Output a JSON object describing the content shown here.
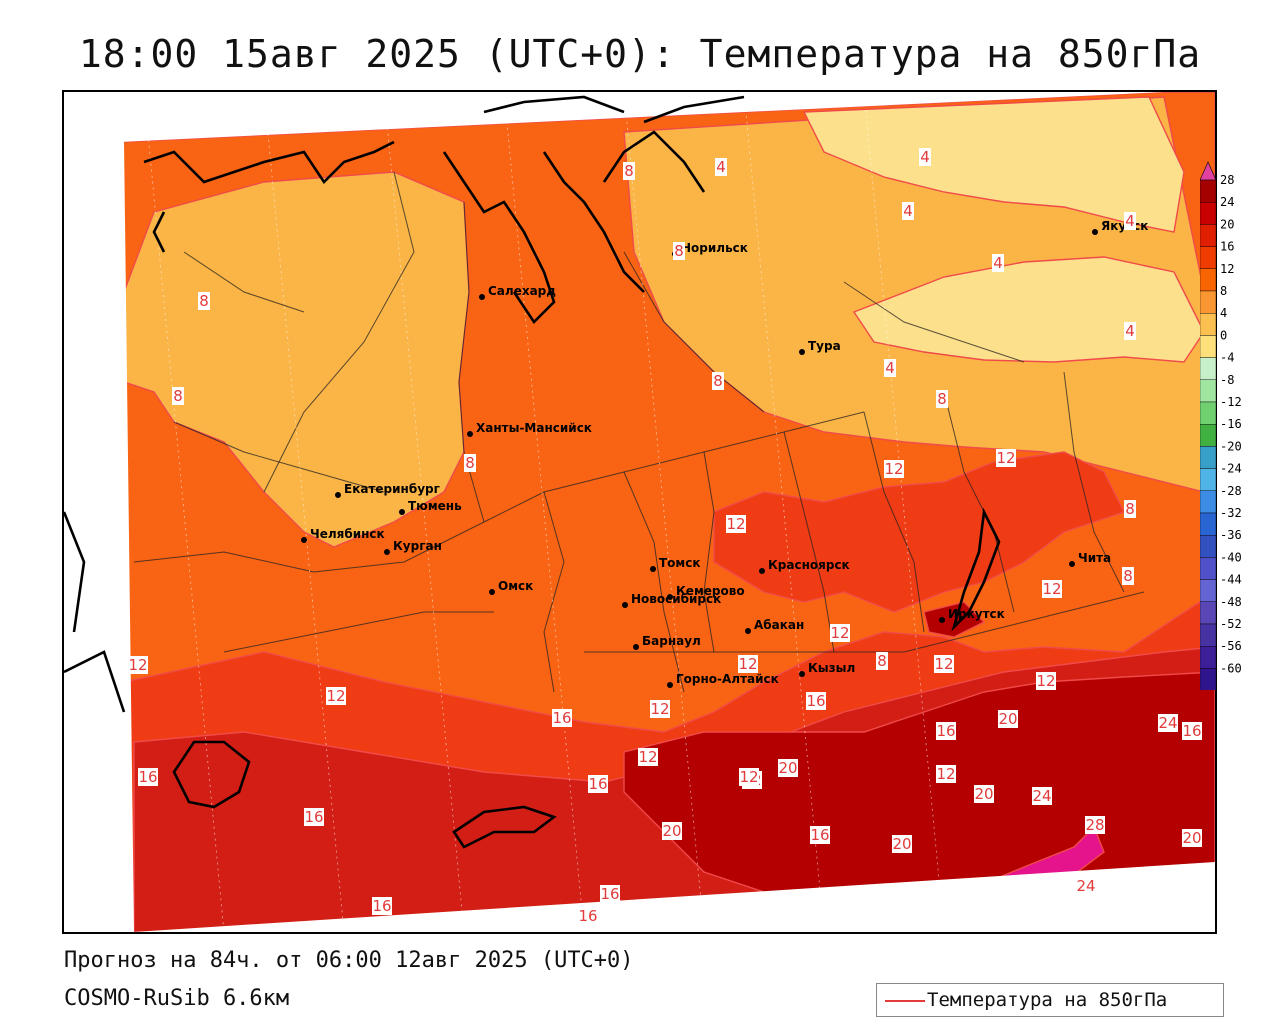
{
  "header": {
    "title": "18:00 15авг 2025 (UTC+0): Температура на 850гПа"
  },
  "footer": {
    "forecast_line": "Прогноз на 84ч. от 06:00 12авг 2025 (UTC+0)",
    "model_line": "COSMO-RuSib 6.6км"
  },
  "legend": {
    "label": "Температура на 850гПа",
    "line_color": "#e23b3b"
  },
  "colorbar": {
    "ticks": [
      "28",
      "24",
      "20",
      "16",
      "12",
      "8",
      "4",
      "0",
      "-4",
      "-8",
      "-12",
      "-16",
      "-20",
      "-24",
      "-28",
      "-32",
      "-36",
      "-40",
      "-44",
      "-48",
      "-52",
      "-56",
      "-60"
    ],
    "colors": [
      "#a40000",
      "#c80000",
      "#e01e00",
      "#f03c00",
      "#f86400",
      "#fa9632",
      "#fbc050",
      "#fde07a",
      "#c8f0c8",
      "#a0e6a0",
      "#70d070",
      "#40b040",
      "#38a0c8",
      "#50b4e8",
      "#3c8ce6",
      "#2864d2",
      "#3250be",
      "#5050c8",
      "#6464d2",
      "#5a46b4",
      "#4632a0",
      "#3c1e96",
      "#30148c"
    ],
    "top_arrow_color": "#e040a0",
    "bottom_arrow_color": "#a020c0"
  },
  "map": {
    "field_colors": {
      "above_24": "#e6148c",
      "t20_24": "#b40000",
      "t16_20": "#d21e14",
      "t12_16": "#f03c14",
      "t8_12": "#f86414",
      "t4_8": "#fbb446",
      "t0_4": "#fde08c"
    },
    "cities": [
      {
        "name": "Салехард"
      },
      {
        "name": "Норильск"
      },
      {
        "name": "Якутск"
      },
      {
        "name": "Тура"
      },
      {
        "name": "Ханты-Мансийск"
      },
      {
        "name": "Екатеринбург"
      },
      {
        "name": "Тюмень"
      },
      {
        "name": "Челябинск"
      },
      {
        "name": "Курган"
      },
      {
        "name": "Омск"
      },
      {
        "name": "Новосибирск"
      },
      {
        "name": "Томск"
      },
      {
        "name": "Кемерово"
      },
      {
        "name": "Красноярск"
      },
      {
        "name": "Абакан"
      },
      {
        "name": "Барнаул"
      },
      {
        "name": "Горно-Алтайск"
      },
      {
        "name": "Кызыл"
      },
      {
        "name": "Иркутск"
      },
      {
        "name": "Чита"
      }
    ],
    "isotherm_labels": [
      "8",
      "4",
      "4",
      "4",
      "4",
      "4",
      "4",
      "8",
      "8",
      "8",
      "8",
      "8",
      "4",
      "8",
      "8",
      "12",
      "12",
      "12",
      "12",
      "8",
      "12",
      "12",
      "16",
      "12",
      "12",
      "12",
      "12",
      "12",
      "16",
      "12",
      "12",
      "16",
      "20",
      "16",
      "20",
      "12",
      "20",
      "24",
      "16",
      "16",
      "20",
      "16",
      "20",
      "24",
      "28",
      "20",
      "24",
      "16",
      "16",
      "16",
      "16",
      "20",
      "12",
      "8"
    ]
  }
}
